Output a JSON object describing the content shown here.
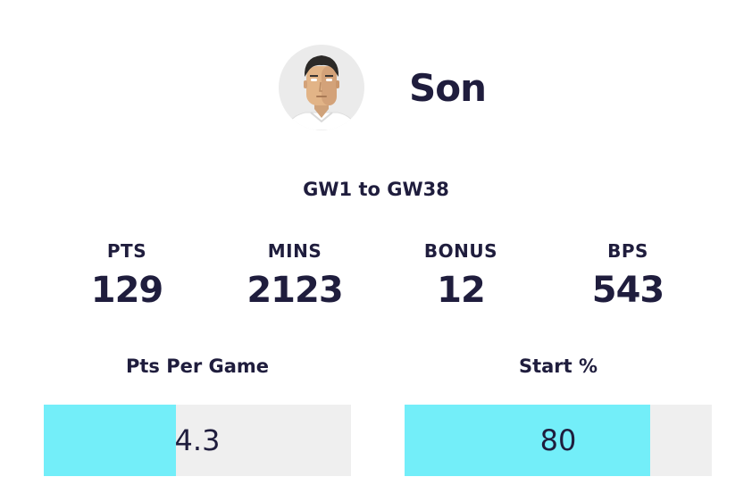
{
  "player": {
    "name": "Son",
    "avatar_icon": "player-avatar-icon"
  },
  "range": "GW1 to GW38",
  "stats": [
    {
      "label": "PTS",
      "value": "129"
    },
    {
      "label": "MINS",
      "value": "2123"
    },
    {
      "label": "BONUS",
      "value": "12"
    },
    {
      "label": "BPS",
      "value": "543"
    }
  ],
  "bars": [
    {
      "title": "Pts Per Game",
      "value": "4.3",
      "fill_fraction": 0.43
    },
    {
      "title": "Start %",
      "value": "80",
      "fill_fraction": 0.8
    }
  ],
  "colors": {
    "text": "#1f1d3d",
    "bar_fill": "#73eef9",
    "bar_track": "#efefef"
  }
}
